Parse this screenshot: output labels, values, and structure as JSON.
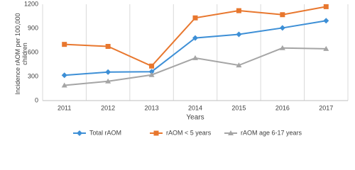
{
  "chart_data": {
    "type": "line",
    "y_label": "Incidence rAOM per 100,000 children",
    "x_label": "Years",
    "categories": [
      "2011",
      "2012",
      "2013",
      "2014",
      "2015",
      "2016",
      "2017"
    ],
    "series": [
      {
        "name": "Total rAOM",
        "color": "#3d8fd6",
        "marker": "diamond",
        "values": [
          315,
          355,
          360,
          780,
          825,
          905,
          995
        ]
      },
      {
        "name": "rAOM < 5 years",
        "color": "#e8772e",
        "marker": "square",
        "values": [
          700,
          675,
          430,
          1030,
          1120,
          1070,
          1170
        ]
      },
      {
        "name": "rAOM age 6-17 years",
        "color": "#a5a5a5",
        "marker": "triangle",
        "values": [
          190,
          240,
          320,
          530,
          440,
          655,
          645
        ]
      }
    ],
    "ylim": [
      0,
      1200
    ],
    "yticks": [
      0,
      300,
      600,
      900,
      1200
    ],
    "grid": true,
    "legend": "bottom"
  }
}
